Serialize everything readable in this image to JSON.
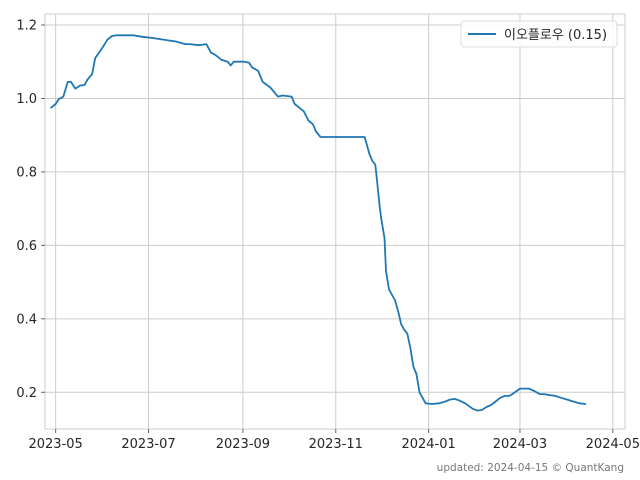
{
  "chart_data": {
    "type": "line",
    "title": "",
    "xlabel": "",
    "ylabel": "",
    "grid": true,
    "legend_position": "top-right",
    "xlim": [
      "2023-04-24",
      "2024-05-09"
    ],
    "ylim": [
      0.1,
      1.23
    ],
    "x_tick_labels": [
      "2023-05",
      "2023-07",
      "2023-09",
      "2023-11",
      "2024-01",
      "2024-03",
      "2024-05"
    ],
    "x_tick_dates": [
      "2023-05-01",
      "2023-07-01",
      "2023-09-01",
      "2023-11-01",
      "2024-01-01",
      "2024-03-01",
      "2024-05-01"
    ],
    "y_ticks": [
      0.2,
      0.4,
      0.6,
      0.8,
      1.0,
      1.2
    ],
    "y_tick_labels": [
      "0.2",
      "0.4",
      "0.6",
      "0.8",
      "1.0",
      "1.2"
    ],
    "series": [
      {
        "name": "이오플로우 (0.15)",
        "color": "#1f77b4",
        "x": [
          "2023-04-28",
          "2023-05-01",
          "2023-05-03",
          "2023-05-06",
          "2023-05-09",
          "2023-05-11",
          "2023-05-14",
          "2023-05-17",
          "2023-05-20",
          "2023-05-22",
          "2023-05-25",
          "2023-05-27",
          "2023-06-01",
          "2023-06-04",
          "2023-06-07",
          "2023-06-10",
          "2023-06-12",
          "2023-06-16",
          "2023-06-21",
          "2023-06-27",
          "2023-07-03",
          "2023-07-08",
          "2023-07-14",
          "2023-07-19",
          "2023-07-25",
          "2023-07-28",
          "2023-08-03",
          "2023-08-08",
          "2023-08-11",
          "2023-08-14",
          "2023-08-18",
          "2023-08-22",
          "2023-08-24",
          "2023-08-26",
          "2023-08-28",
          "2023-09-02",
          "2023-09-05",
          "2023-09-07",
          "2023-09-11",
          "2023-09-14",
          "2023-09-19",
          "2023-09-24",
          "2023-09-27",
          "2023-10-03",
          "2023-10-05",
          "2023-10-08",
          "2023-10-11",
          "2023-10-14",
          "2023-10-17",
          "2023-10-19",
          "2023-10-22",
          "2023-10-25",
          "2023-10-27",
          "2023-11-03",
          "2023-11-08",
          "2023-11-11",
          "2023-11-14",
          "2023-11-20",
          "2023-11-23",
          "2023-11-25",
          "2023-11-27",
          "2023-11-28",
          "2023-11-30",
          "2023-12-01",
          "2023-12-03",
          "2023-12-04",
          "2023-12-06",
          "2023-12-08",
          "2023-12-10",
          "2023-12-12",
          "2023-12-14",
          "2023-12-16",
          "2023-12-18",
          "2023-12-20",
          "2023-12-22",
          "2023-12-24",
          "2023-12-26",
          "2023-12-30",
          "2024-01-03",
          "2024-01-08",
          "2024-01-12",
          "2024-01-15",
          "2024-01-18",
          "2024-01-21",
          "2024-01-25",
          "2024-01-30",
          "2024-02-02",
          "2024-02-05",
          "2024-02-08",
          "2024-02-11",
          "2024-02-14",
          "2024-02-17",
          "2024-02-20",
          "2024-02-23",
          "2024-02-25",
          "2024-03-01",
          "2024-03-05",
          "2024-03-07",
          "2024-03-11",
          "2024-03-14",
          "2024-03-17",
          "2024-03-19",
          "2024-03-24",
          "2024-03-28",
          "2024-04-01",
          "2024-04-05",
          "2024-04-09",
          "2024-04-13"
        ],
        "y": [
          0.975,
          0.985,
          0.998,
          1.005,
          1.045,
          1.045,
          1.027,
          1.035,
          1.037,
          1.052,
          1.067,
          1.11,
          1.14,
          1.16,
          1.17,
          1.172,
          1.172,
          1.172,
          1.172,
          1.168,
          1.165,
          1.162,
          1.158,
          1.155,
          1.148,
          1.148,
          1.145,
          1.148,
          1.125,
          1.118,
          1.105,
          1.1,
          1.09,
          1.1,
          1.1,
          1.1,
          1.097,
          1.085,
          1.075,
          1.045,
          1.03,
          1.005,
          1.008,
          1.005,
          0.985,
          0.975,
          0.965,
          0.94,
          0.93,
          0.91,
          0.895,
          0.895,
          0.895,
          0.895,
          0.895,
          0.895,
          0.895,
          0.895,
          0.85,
          0.83,
          0.82,
          0.78,
          0.7,
          0.67,
          0.62,
          0.53,
          0.48,
          0.465,
          0.45,
          0.42,
          0.385,
          0.37,
          0.36,
          0.32,
          0.27,
          0.25,
          0.2,
          0.17,
          0.168,
          0.17,
          0.175,
          0.18,
          0.182,
          0.178,
          0.17,
          0.155,
          0.15,
          0.152,
          0.16,
          0.165,
          0.175,
          0.185,
          0.19,
          0.19,
          0.195,
          0.21,
          0.21,
          0.21,
          0.202,
          0.195,
          0.195,
          0.193,
          0.19,
          0.185,
          0.18,
          0.175,
          0.17,
          0.168
        ]
      }
    ]
  },
  "footer": {
    "text": "updated: 2024-04-15 © QuantKang"
  }
}
